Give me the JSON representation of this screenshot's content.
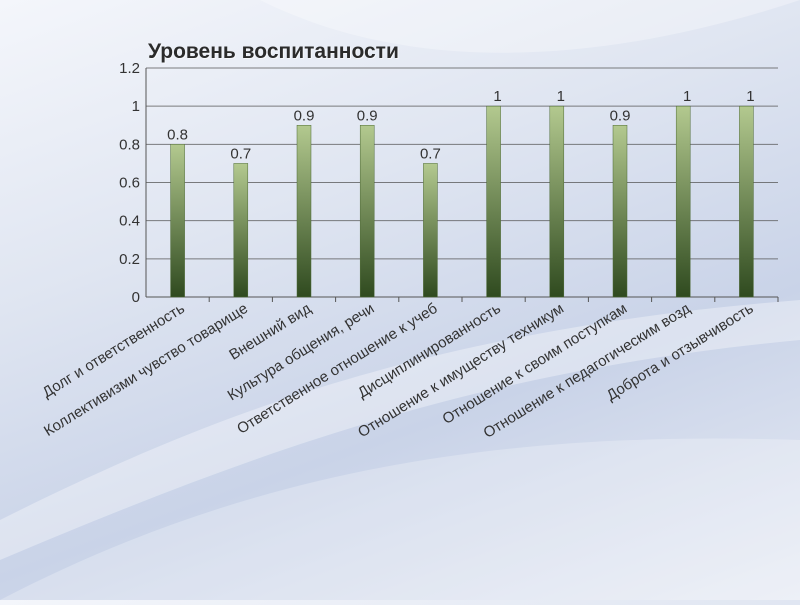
{
  "chart_data": {
    "type": "bar",
    "title": "Уровень воспитанности",
    "categories": [
      "Долг и ответственность",
      "Коллективизми чувство товарище",
      "Внешний вид",
      "Культура общения, речи",
      "Ответственное отношение к учеб",
      "Дисциплинированность",
      "Отношение к имуществу техникум",
      "Отношение к своим поступкам",
      "Отношение к педагогическим возд",
      "Доброта и отзывчивость"
    ],
    "values": [
      0.8,
      0.7,
      0.9,
      0.9,
      0.7,
      1,
      1,
      0.9,
      1,
      1
    ],
    "data_labels": [
      "0.8",
      "0.7",
      "0.9",
      "0.9",
      "0.7",
      "1",
      "1",
      "0.9",
      "1",
      "1"
    ],
    "y_ticks": [
      "0",
      "0.2",
      "0.4",
      "0.6",
      "0.8",
      "1",
      "1.2"
    ],
    "ylim": [
      0,
      1.2
    ],
    "grid": true,
    "legend": "none",
    "colors": {
      "bar_top": "#b3c98f",
      "bar_bottom": "#2f4a1f",
      "grid": "#555555",
      "text": "#333333"
    }
  }
}
